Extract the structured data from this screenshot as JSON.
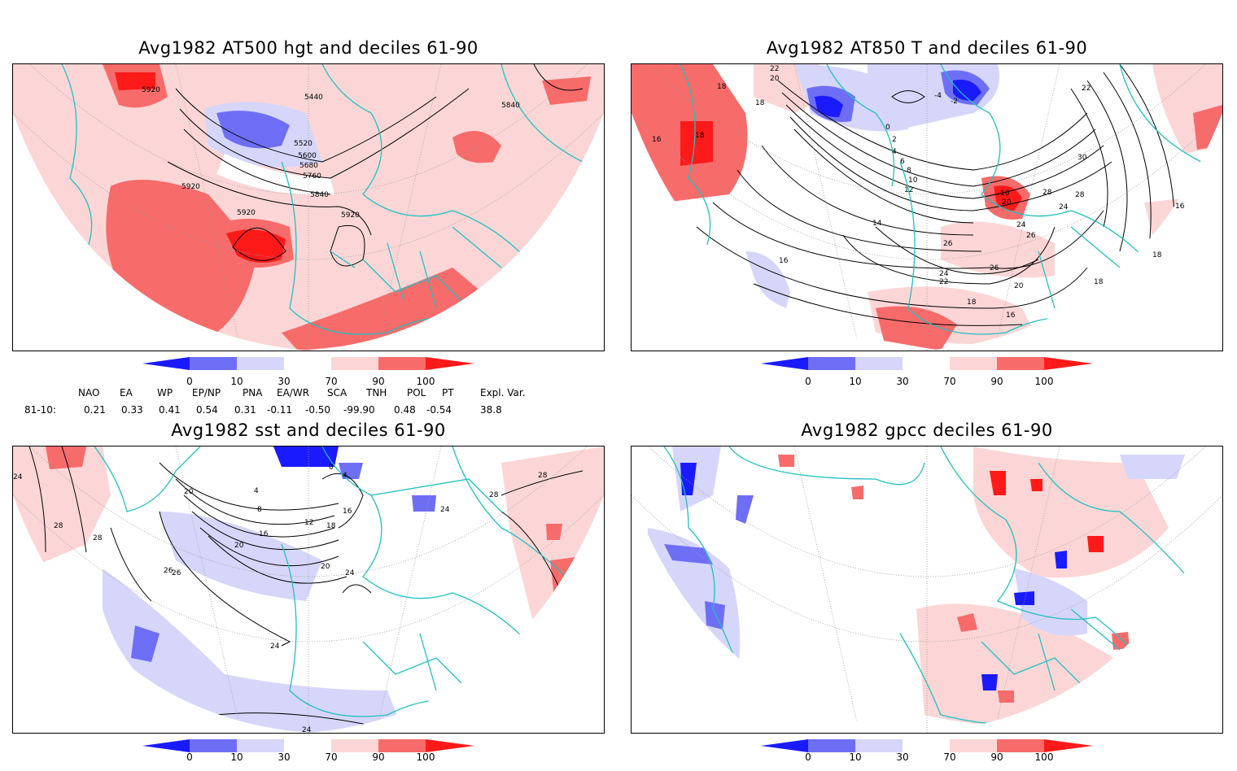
{
  "panels": [
    {
      "title": "Avg1982 AT500 hgt and deciles 61-90",
      "contour_labels": [
        "5920",
        "5440",
        "5840",
        "5520",
        "5600",
        "5680",
        "5760",
        "5920",
        "5840",
        "5920",
        "5920"
      ]
    },
    {
      "title": "Avg1982 AT850 T and deciles 61-90",
      "contour_labels": [
        "22",
        "20",
        "18",
        "18",
        "16",
        "18",
        "-4",
        "-2",
        "0",
        "2",
        "4",
        "6",
        "8",
        "10",
        "12",
        "14",
        "16",
        "20",
        "22",
        "24",
        "24",
        "26",
        "26",
        "28",
        "30",
        "16",
        "18",
        "24",
        "22",
        "26",
        "20",
        "18",
        "16",
        "16",
        "18",
        "28"
      ]
    },
    {
      "title": "Avg1982 sst and deciles 61-90",
      "contour_labels": [
        "24",
        "28",
        "20",
        "4",
        "8",
        "12",
        "16",
        "20",
        "26",
        "28",
        "24",
        "0",
        "4",
        "16",
        "18",
        "20",
        "24",
        "24",
        "28",
        "28",
        "24",
        "26"
      ]
    },
    {
      "title": "Avg1982 gpcc deciles 61-90",
      "contour_labels": []
    }
  ],
  "colorbar": {
    "ticks": [
      "0",
      "10",
      "30",
      "70",
      "90",
      "100"
    ],
    "colors": [
      "#1a1aff",
      "#6e6ef5",
      "#d6d6fa",
      "#ffffff",
      "#fcd6d6",
      "#f76b6b",
      "#ff1a1a"
    ]
  },
  "indices": {
    "headers": [
      "NAO",
      "EA",
      "WP",
      "EP/NP",
      "PNA",
      "EA/WR",
      "SCA",
      "TNH",
      "POL",
      "PT",
      "Expl. Var."
    ],
    "row_label": "81-10:",
    "values": [
      "0.21",
      "0.33",
      "0.41",
      "0.54",
      "0.31",
      "-0.11",
      "-0.50",
      "-99.90",
      "0.48",
      "-0.54",
      "38.8"
    ]
  },
  "colors": {
    "coast": "#20c0c0",
    "light_red": "#fcd6d6",
    "mid_red": "#f76b6b",
    "dark_red": "#ff1a1a",
    "light_blue": "#d6d6fa",
    "mid_blue": "#6e6ef5",
    "dark_blue": "#1a1aff"
  }
}
